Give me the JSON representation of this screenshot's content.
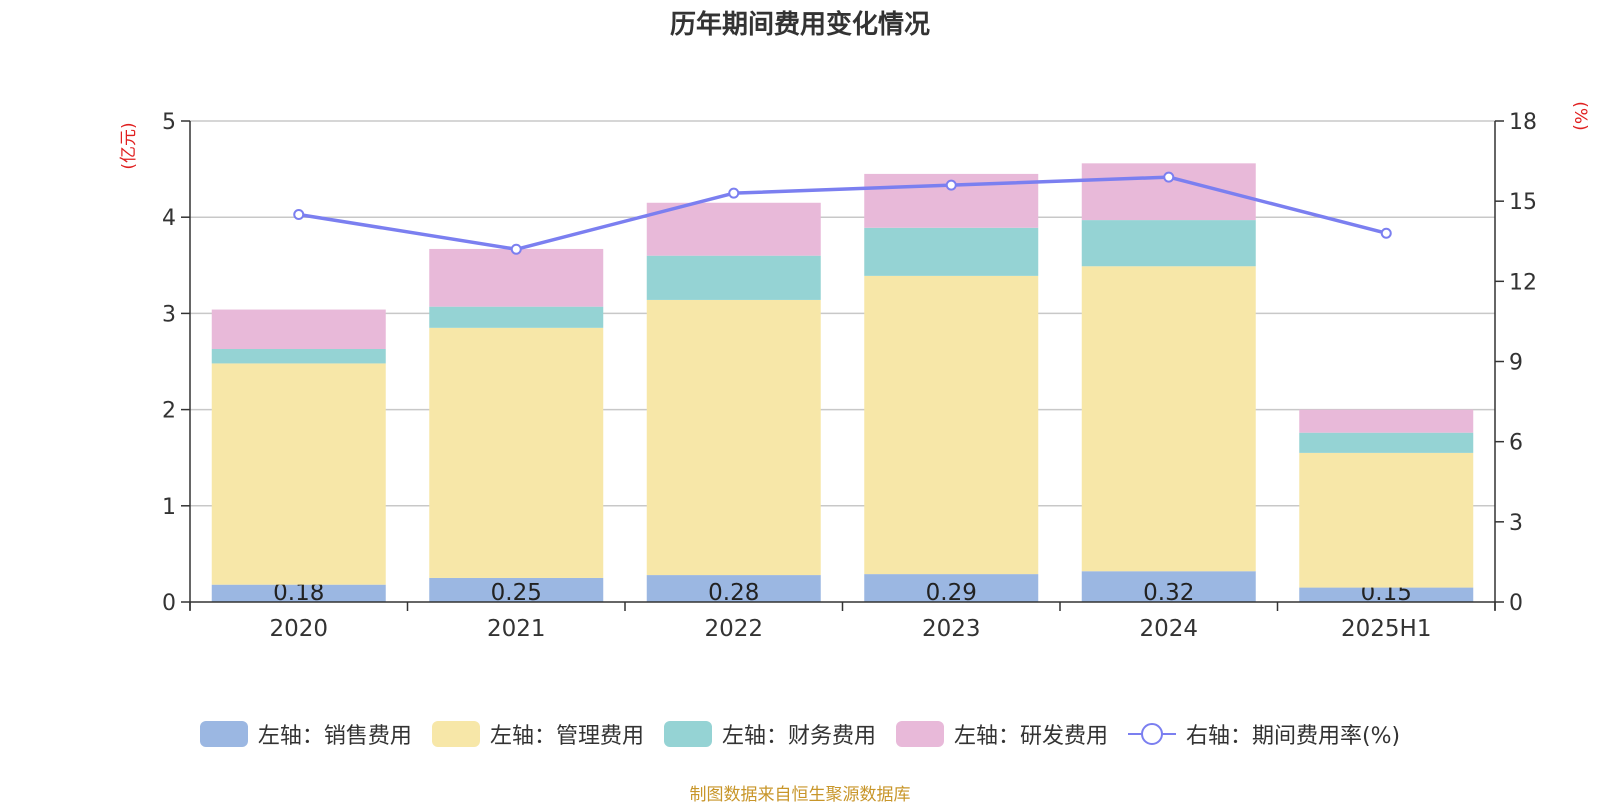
{
  "chart_data": {
    "type": "bar",
    "title": "历年期间费用变化情况",
    "categories": [
      "2020",
      "2021",
      "2022",
      "2023",
      "2024",
      "2025H1"
    ],
    "stacked": true,
    "y_left": {
      "unit_label": "(亿元)",
      "ylim": [
        0,
        5
      ],
      "ticks": [
        "0",
        "1",
        "2",
        "3",
        "4",
        "5"
      ]
    },
    "y_right": {
      "unit_label": "(%)",
      "ylim": [
        0,
        18
      ],
      "ticks": [
        "0",
        "3",
        "6",
        "9",
        "12",
        "15",
        "18"
      ]
    },
    "grid": true,
    "legend_position": "bottom",
    "series": [
      {
        "name": "左轴：销售费用",
        "axis": "left",
        "type": "bar",
        "color": "#9bb7e2",
        "values": [
          0.18,
          0.25,
          0.28,
          0.29,
          0.32,
          0.15
        ],
        "labels": [
          "0.18",
          "0.25",
          "0.28",
          "0.29",
          "0.32",
          "0.15"
        ]
      },
      {
        "name": "左轴：管理费用",
        "axis": "left",
        "type": "bar",
        "color": "#f7e7a8",
        "values": [
          2.3,
          2.6,
          2.86,
          3.1,
          3.17,
          1.4
        ]
      },
      {
        "name": "左轴：财务费用",
        "axis": "left",
        "type": "bar",
        "color": "#95d3d4",
        "values": [
          0.15,
          0.22,
          0.46,
          0.5,
          0.48,
          0.21
        ]
      },
      {
        "name": "左轴：研发费用",
        "axis": "left",
        "type": "bar",
        "color": "#e8b9d9",
        "values": [
          0.41,
          0.6,
          0.55,
          0.56,
          0.59,
          0.24
        ]
      },
      {
        "name": "右轴：期间费用率(%)",
        "axis": "right",
        "type": "line",
        "color": "#7b7ff0",
        "values": [
          14.5,
          13.2,
          15.3,
          15.6,
          15.9,
          13.8
        ]
      }
    ]
  },
  "source": "制图数据来自恒生聚源数据库"
}
